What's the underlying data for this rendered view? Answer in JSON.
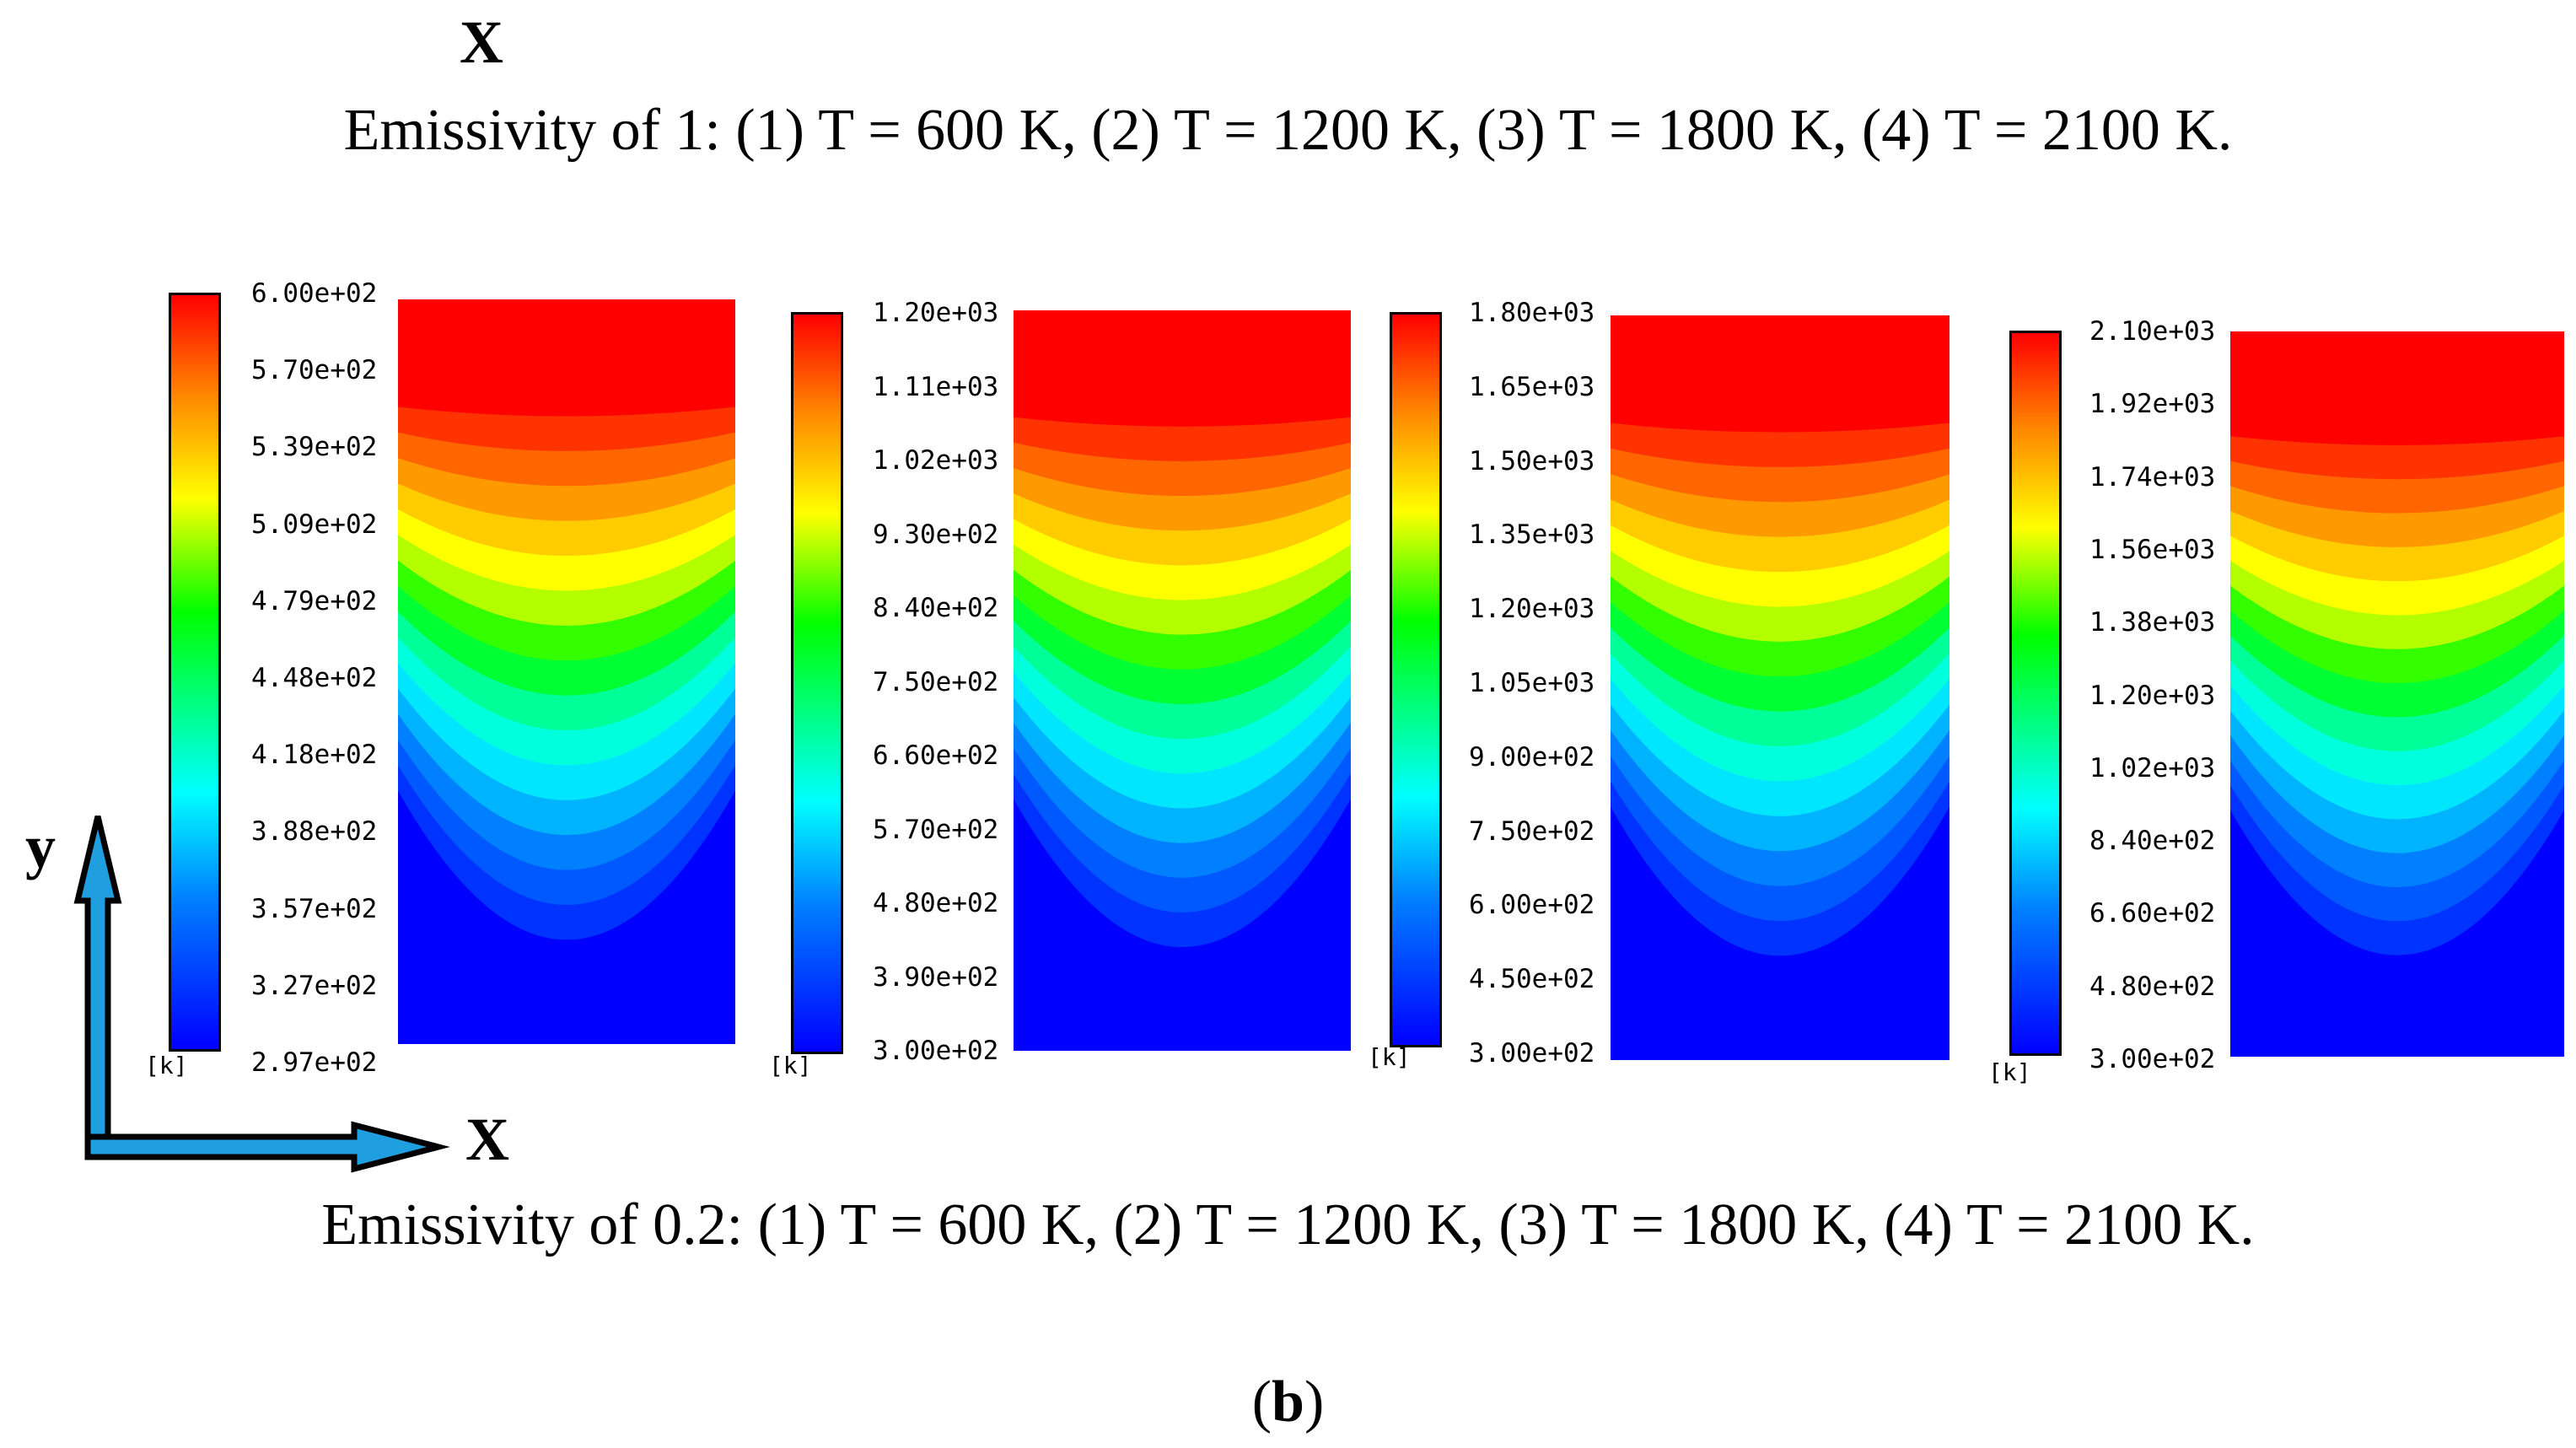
{
  "header": {
    "top_axis_label": "X",
    "caption_emissivity_1": "Emissivity of 1: (1) T = 600 K, (2) T = 1200 K, (3) T = 1800 K, (4) T = 2100 K.",
    "caption_emissivity_02": "Emissivity of 0.2: (1) T = 600 K, (2) T = 1200 K, (3) T = 1800 K, (4) T = 2100 K.",
    "subfigure_label_paren_open": "(",
    "subfigure_label_letter": "b",
    "subfigure_label_paren_close": ")"
  },
  "axes": {
    "y_label": "y",
    "x_label": "X"
  },
  "colors": {
    "red": "#ff0000",
    "orange": "#ff7f00",
    "yellow": "#ffff00",
    "green": "#00ff00",
    "cyan": "#00ffff",
    "blue": "#0000ff",
    "axis_fill": "#1f9fe0"
  },
  "panels": [
    {
      "id": 1,
      "temperature": "T = 600 K",
      "unit": "[k]",
      "ticks": [
        "6.00e+02",
        "5.70e+02",
        "5.39e+02",
        "5.09e+02",
        "4.79e+02",
        "4.48e+02",
        "4.18e+02",
        "3.88e+02",
        "3.57e+02",
        "3.27e+02",
        "2.97e+02"
      ]
    },
    {
      "id": 2,
      "temperature": "T = 1200 K",
      "unit": "[k]",
      "ticks": [
        "1.20e+03",
        "1.11e+03",
        "1.02e+03",
        "9.30e+02",
        "8.40e+02",
        "7.50e+02",
        "6.60e+02",
        "5.70e+02",
        "4.80e+02",
        "3.90e+02",
        "3.00e+02"
      ]
    },
    {
      "id": 3,
      "temperature": "T = 1800 K",
      "unit": "[k]",
      "ticks": [
        "1.80e+03",
        "1.65e+03",
        "1.50e+03",
        "1.35e+03",
        "1.20e+03",
        "1.05e+03",
        "9.00e+02",
        "7.50e+02",
        "6.00e+02",
        "4.50e+02",
        "3.00e+02"
      ]
    },
    {
      "id": 4,
      "temperature": "T = 2100 K",
      "unit": "[k]",
      "ticks": [
        "2.10e+03",
        "1.92e+03",
        "1.74e+03",
        "1.56e+03",
        "1.38e+03",
        "1.20e+03",
        "1.02e+03",
        "8.40e+02",
        "6.60e+02",
        "4.80e+02",
        "3.00e+02"
      ]
    }
  ]
}
